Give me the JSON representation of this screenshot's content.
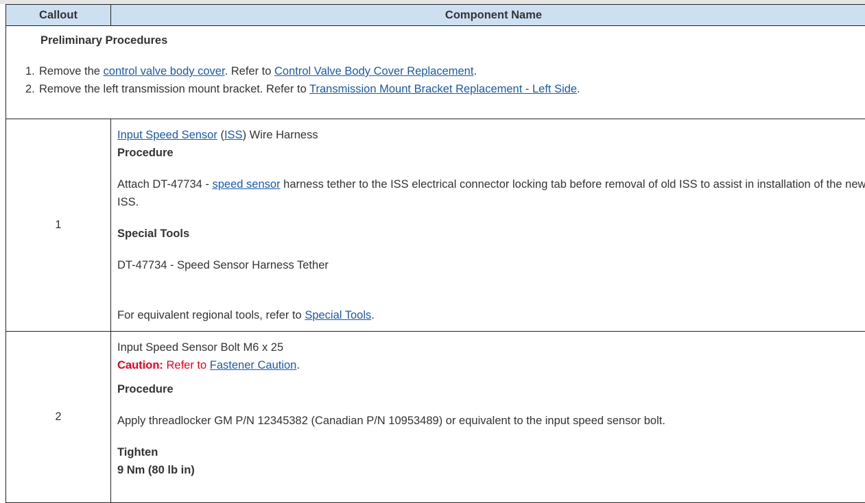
{
  "header": {
    "callout": "Callout",
    "component": "Component Name"
  },
  "prelim": {
    "title": "Preliminary Procedures",
    "steps": [
      {
        "num": "1.",
        "pre": "Remove the ",
        "link1": "control valve body cover",
        "mid": ". Refer to ",
        "link2": "Control Valve Body Cover Replacement",
        "post": "."
      },
      {
        "num": "2.",
        "pre": "Remove the left transmission mount bracket. Refer to ",
        "link2": "Transmission Mount Bracket Replacement - Left Side",
        "post": "."
      }
    ]
  },
  "rows": [
    {
      "callout": "1",
      "name_link1": "Input Speed Sensor",
      "name_paren_open": " (",
      "name_link2": "ISS",
      "name_rest": ") Wire Harness",
      "procedure_label": "Procedure",
      "proc_pre": "Attach DT-47734 - ",
      "proc_link": "speed sensor",
      "proc_post": " harness tether to the ISS electrical connector locking tab before removal of old ISS to assist in installation of the new ISS.",
      "tools_label": "Special Tools",
      "tool": "DT-47734 - Speed Sensor Harness Tether",
      "regional_pre": "For equivalent regional tools, refer to ",
      "regional_link": "Special Tools",
      "regional_post": "."
    },
    {
      "callout": "2",
      "name": "Input Speed Sensor Bolt M6 x 25",
      "caution_label": "Caution:",
      "caution_pre": " Refer to ",
      "caution_link": "Fastener Caution",
      "caution_post": ".",
      "procedure_label": "Procedure",
      "proc": "Apply threadlocker GM P/N 12345382 (Canadian P/N 10953489) or equivalent to the input speed sensor bolt.",
      "tighten_label": "Tighten",
      "torque": "9 Nm (80 lb in)"
    }
  ],
  "colors": {
    "header_bg": "#cde0f2",
    "link": "#1a5aa6",
    "caution": "#e8001c"
  }
}
